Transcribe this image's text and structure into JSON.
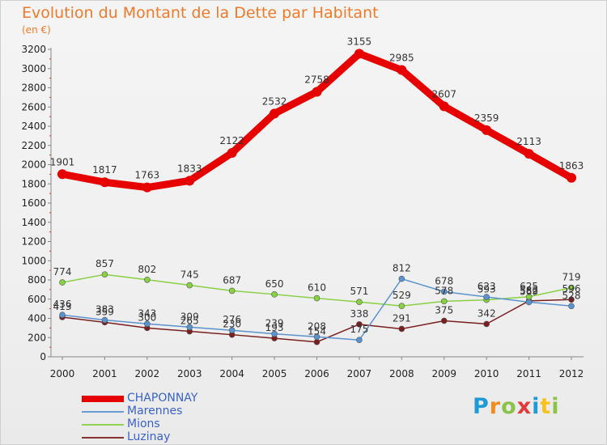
{
  "title": "Evolution du Montant de la Dette par Habitant",
  "subtitle": "(en €)",
  "logo": {
    "text": "Proxiti",
    "colors": [
      "#1f9ad6",
      "#f28c1e",
      "#8bc34a",
      "#e23b3b",
      "#1f9ad6",
      "#f7c21b",
      "#8bc34a"
    ]
  },
  "chart_data": {
    "type": "line",
    "x": [
      "2000",
      "2001",
      "2002",
      "2003",
      "2004",
      "2005",
      "2006",
      "2007",
      "2008",
      "2009",
      "2010",
      "2011",
      "2012"
    ],
    "ylim": [
      0,
      3200
    ],
    "yticks": [
      0,
      200,
      400,
      600,
      800,
      1000,
      1200,
      1400,
      1600,
      1800,
      2000,
      2200,
      2400,
      2600,
      2800,
      3000,
      3200
    ],
    "grid": false,
    "legend": "bottom-left",
    "series": [
      {
        "name": "CHAPONNAY",
        "color": "#e60000",
        "values": [
          1901,
          1817,
          1763,
          1833,
          2122,
          2532,
          2758,
          3155,
          2985,
          2607,
          2359,
          2113,
          1863
        ]
      },
      {
        "name": "Marennes",
        "color": "#5b93cf",
        "values": [
          436,
          383,
          343,
          309,
          276,
          239,
          208,
          175,
          812,
          678,
          623,
          569,
          528
        ]
      },
      {
        "name": "Mions",
        "color": "#88d044",
        "values": [
          774,
          857,
          802,
          745,
          687,
          650,
          610,
          571,
          529,
          578,
          593,
          625,
          719
        ]
      },
      {
        "name": "Luzinay",
        "color": "#7a1f1f",
        "values": [
          413,
          359,
          300,
          265,
          230,
          193,
          154,
          338,
          291,
          375,
          342,
          582,
          596
        ]
      }
    ]
  }
}
